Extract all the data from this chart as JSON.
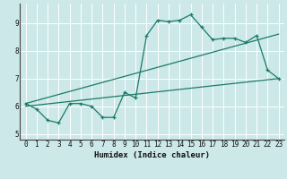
{
  "xlabel": "Humidex (Indice chaleur)",
  "ylabel": "",
  "bg_color": "#cce8e8",
  "grid_color": "#ffffff",
  "line_color": "#1a7a6a",
  "xlim": [
    -0.5,
    23.5
  ],
  "ylim": [
    4.8,
    9.7
  ],
  "yticks": [
    5,
    6,
    7,
    8,
    9
  ],
  "xticks": [
    0,
    1,
    2,
    3,
    4,
    5,
    6,
    7,
    8,
    9,
    10,
    11,
    12,
    13,
    14,
    15,
    16,
    17,
    18,
    19,
    20,
    21,
    22,
    23
  ],
  "line1_x": [
    0,
    1,
    2,
    3,
    4,
    5,
    6,
    7,
    8,
    9,
    10,
    11,
    12,
    13,
    14,
    15,
    16,
    17,
    18,
    19,
    20,
    21,
    22,
    23
  ],
  "line1_y": [
    6.1,
    5.9,
    5.5,
    5.4,
    6.1,
    6.1,
    6.0,
    5.6,
    5.6,
    6.5,
    6.3,
    8.55,
    9.1,
    9.05,
    9.1,
    9.3,
    8.85,
    8.4,
    8.45,
    8.45,
    8.3,
    8.55,
    7.3,
    7.0
  ],
  "line2_x": [
    0,
    23
  ],
  "line2_y": [
    6.0,
    7.0
  ],
  "line3_x": [
    0,
    23
  ],
  "line3_y": [
    6.1,
    8.6
  ]
}
